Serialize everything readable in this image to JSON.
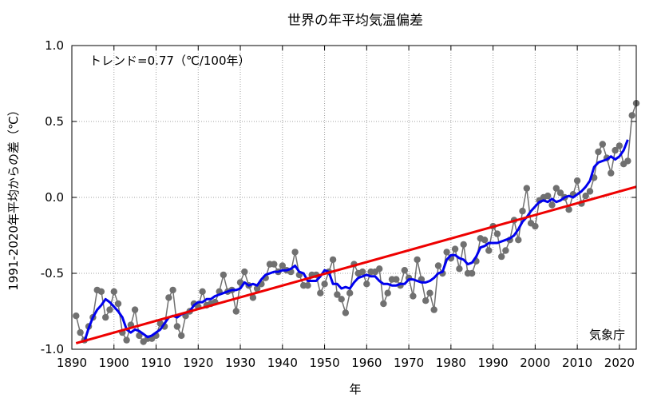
{
  "chart_data": {
    "type": "line",
    "title": "世界の年平均気温偏差",
    "xlabel": "年",
    "ylabel": "1991-2020年平均からの差（℃）",
    "annotation": "トレンド=0.77（℃/100年）",
    "source": "気象庁",
    "xlim": [
      1890,
      2024
    ],
    "ylim": [
      -1.0,
      1.0
    ],
    "x_ticks": [
      "1890",
      "1900",
      "1910",
      "1920",
      "1930",
      "1940",
      "1950",
      "1960",
      "1970",
      "1980",
      "1990",
      "2000",
      "2010",
      "2020"
    ],
    "y_ticks": [
      "1.0",
      "0.5",
      "0.0",
      "-0.5",
      "-1.0"
    ],
    "grid": true,
    "series": [
      {
        "kind": "annual",
        "color": "#707070",
        "x": [
          1891,
          1892,
          1893,
          1894,
          1895,
          1896,
          1897,
          1898,
          1899,
          1900,
          1901,
          1902,
          1903,
          1904,
          1905,
          1906,
          1907,
          1908,
          1909,
          1910,
          1911,
          1912,
          1913,
          1914,
          1915,
          1916,
          1917,
          1918,
          1919,
          1920,
          1921,
          1922,
          1923,
          1924,
          1925,
          1926,
          1927,
          1928,
          1929,
          1930,
          1931,
          1932,
          1933,
          1934,
          1935,
          1936,
          1937,
          1938,
          1939,
          1940,
          1941,
          1942,
          1943,
          1944,
          1945,
          1946,
          1947,
          1948,
          1949,
          1950,
          1951,
          1952,
          1953,
          1954,
          1955,
          1956,
          1957,
          1958,
          1959,
          1960,
          1961,
          1962,
          1963,
          1964,
          1965,
          1966,
          1967,
          1968,
          1969,
          1970,
          1971,
          1972,
          1973,
          1974,
          1975,
          1976,
          1977,
          1978,
          1979,
          1980,
          1981,
          1982,
          1983,
          1984,
          1985,
          1986,
          1987,
          1988,
          1989,
          1990,
          1991,
          1992,
          1993,
          1994,
          1995,
          1996,
          1997,
          1998,
          1999,
          2000,
          2001,
          2002,
          2003,
          2004,
          2005,
          2006,
          2007,
          2008,
          2009,
          2010,
          2011,
          2012,
          2013,
          2014,
          2015,
          2016,
          2017,
          2018,
          2019,
          2020,
          2021,
          2022,
          2023,
          2024
        ],
        "y": [
          -0.78,
          -0.89,
          -0.94,
          -0.85,
          -0.79,
          -0.61,
          -0.62,
          -0.79,
          -0.74,
          -0.62,
          -0.7,
          -0.89,
          -0.94,
          -0.84,
          -0.74,
          -0.91,
          -0.95,
          -0.93,
          -0.93,
          -0.91,
          -0.83,
          -0.85,
          -0.66,
          -0.61,
          -0.85,
          -0.91,
          -0.78,
          -0.75,
          -0.7,
          -0.72,
          -0.62,
          -0.71,
          -0.7,
          -0.69,
          -0.62,
          -0.51,
          -0.62,
          -0.61,
          -0.75,
          -0.56,
          -0.49,
          -0.58,
          -0.66,
          -0.6,
          -0.57,
          -0.53,
          -0.44,
          -0.44,
          -0.49,
          -0.45,
          -0.48,
          -0.49,
          -0.36,
          -0.51,
          -0.58,
          -0.58,
          -0.51,
          -0.51,
          -0.63,
          -0.57,
          -0.49,
          -0.41,
          -0.64,
          -0.67,
          -0.76,
          -0.63,
          -0.44,
          -0.5,
          -0.49,
          -0.57,
          -0.49,
          -0.49,
          -0.47,
          -0.7,
          -0.63,
          -0.54,
          -0.54,
          -0.58,
          -0.48,
          -0.53,
          -0.65,
          -0.41,
          -0.54,
          -0.68,
          -0.63,
          -0.74,
          -0.45,
          -0.5,
          -0.36,
          -0.4,
          -0.34,
          -0.47,
          -0.31,
          -0.5,
          -0.5,
          -0.42,
          -0.27,
          -0.28,
          -0.35,
          -0.19,
          -0.24,
          -0.39,
          -0.35,
          -0.28,
          -0.15,
          -0.28,
          -0.09,
          0.06,
          -0.17,
          -0.19,
          -0.02,
          0.0,
          0.01,
          -0.05,
          0.06,
          0.03,
          0.0,
          -0.08,
          0.02,
          0.11,
          -0.04,
          0.01,
          0.04,
          0.13,
          0.3,
          0.35,
          0.26,
          0.16,
          0.31,
          0.34,
          0.22,
          0.24,
          0.54,
          0.62
        ]
      },
      {
        "kind": "five-year running mean",
        "color": "#0000ee",
        "x": [
          1893,
          1894,
          1895,
          1896,
          1897,
          1898,
          1899,
          1900,
          1901,
          1902,
          1903,
          1904,
          1905,
          1906,
          1907,
          1908,
          1909,
          1910,
          1911,
          1912,
          1913,
          1914,
          1915,
          1916,
          1917,
          1918,
          1919,
          1920,
          1921,
          1922,
          1923,
          1924,
          1925,
          1926,
          1927,
          1928,
          1929,
          1930,
          1931,
          1932,
          1933,
          1934,
          1935,
          1936,
          1937,
          1938,
          1939,
          1940,
          1941,
          1942,
          1943,
          1944,
          1945,
          1946,
          1947,
          1948,
          1949,
          1950,
          1951,
          1952,
          1953,
          1954,
          1955,
          1956,
          1957,
          1958,
          1959,
          1960,
          1961,
          1962,
          1963,
          1964,
          1965,
          1966,
          1967,
          1968,
          1969,
          1970,
          1971,
          1972,
          1973,
          1974,
          1975,
          1976,
          1977,
          1978,
          1979,
          1980,
          1981,
          1982,
          1983,
          1984,
          1985,
          1986,
          1987,
          1988,
          1989,
          1990,
          1991,
          1992,
          1993,
          1994,
          1995,
          1996,
          1997,
          1998,
          1999,
          2000,
          2001,
          2002,
          2003,
          2004,
          2005,
          2006,
          2007,
          2008,
          2009,
          2010,
          2011,
          2012,
          2013,
          2014,
          2015,
          2016,
          2017,
          2018,
          2019,
          2020,
          2021,
          2022
        ],
        "y": [
          -0.95,
          -0.86,
          -0.79,
          -0.74,
          -0.71,
          -0.67,
          -0.69,
          -0.72,
          -0.75,
          -0.79,
          -0.87,
          -0.89,
          -0.87,
          -0.88,
          -0.9,
          -0.92,
          -0.91,
          -0.89,
          -0.87,
          -0.83,
          -0.79,
          -0.78,
          -0.79,
          -0.77,
          -0.76,
          -0.75,
          -0.71,
          -0.69,
          -0.69,
          -0.67,
          -0.67,
          -0.65,
          -0.64,
          -0.63,
          -0.62,
          -0.61,
          -0.61,
          -0.6,
          -0.56,
          -0.58,
          -0.57,
          -0.58,
          -0.54,
          -0.51,
          -0.5,
          -0.49,
          -0.49,
          -0.48,
          -0.48,
          -0.47,
          -0.45,
          -0.49,
          -0.5,
          -0.55,
          -0.55,
          -0.55,
          -0.52,
          -0.48,
          -0.49,
          -0.57,
          -0.57,
          -0.6,
          -0.59,
          -0.6,
          -0.56,
          -0.53,
          -0.52,
          -0.51,
          -0.52,
          -0.52,
          -0.55,
          -0.57,
          -0.57,
          -0.58,
          -0.58,
          -0.57,
          -0.57,
          -0.54,
          -0.54,
          -0.55,
          -0.56,
          -0.56,
          -0.55,
          -0.53,
          -0.5,
          -0.49,
          -0.41,
          -0.38,
          -0.38,
          -0.4,
          -0.41,
          -0.44,
          -0.43,
          -0.39,
          -0.33,
          -0.32,
          -0.3,
          -0.3,
          -0.3,
          -0.29,
          -0.28,
          -0.27,
          -0.25,
          -0.21,
          -0.16,
          -0.13,
          -0.09,
          -0.06,
          -0.03,
          -0.02,
          -0.03,
          -0.01,
          -0.03,
          -0.02,
          0.0,
          0.01,
          0.0,
          0.02,
          0.04,
          0.07,
          0.11,
          0.2,
          0.23,
          0.24,
          0.25,
          0.27,
          0.25,
          0.27,
          0.31,
          0.38
        ]
      },
      {
        "kind": "linear trend",
        "color": "#ee0000",
        "x": [
          1891,
          2024
        ],
        "y": [
          -0.96,
          0.07
        ]
      }
    ]
  }
}
